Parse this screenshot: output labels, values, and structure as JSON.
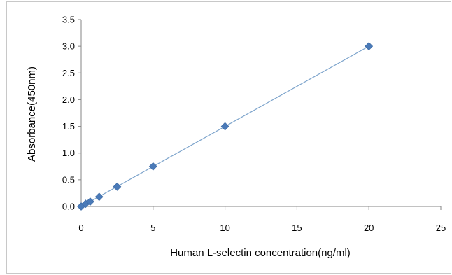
{
  "chart_data": {
    "type": "scatter",
    "xlabel": "Human  L-selectin  concentration(ng/ml)",
    "ylabel": "Absorbance(450nm)",
    "xlim": [
      0,
      25
    ],
    "ylim": [
      0,
      3.5
    ],
    "x_ticks": [
      "0",
      "5",
      "10",
      "15",
      "20",
      "25"
    ],
    "y_ticks": [
      "0.0",
      "0.5",
      "1.0",
      "1.5",
      "2.0",
      "2.5",
      "3.0",
      "3.5"
    ],
    "x_tick_values": [
      0,
      5,
      10,
      15,
      20,
      25
    ],
    "y_tick_values": [
      0,
      0.5,
      1.0,
      1.5,
      2.0,
      2.5,
      3.0,
      3.5
    ],
    "grid": false,
    "legend": "none",
    "trendline": "linear",
    "series": [
      {
        "x": [
          0,
          0.3125,
          0.625,
          1.25,
          2.5,
          5,
          10,
          20
        ],
        "y": [
          0.0,
          0.05,
          0.09,
          0.18,
          0.37,
          0.75,
          1.5,
          3.0
        ],
        "color": "#4a7ab8"
      }
    ],
    "trend_color": "#7da4cc"
  }
}
